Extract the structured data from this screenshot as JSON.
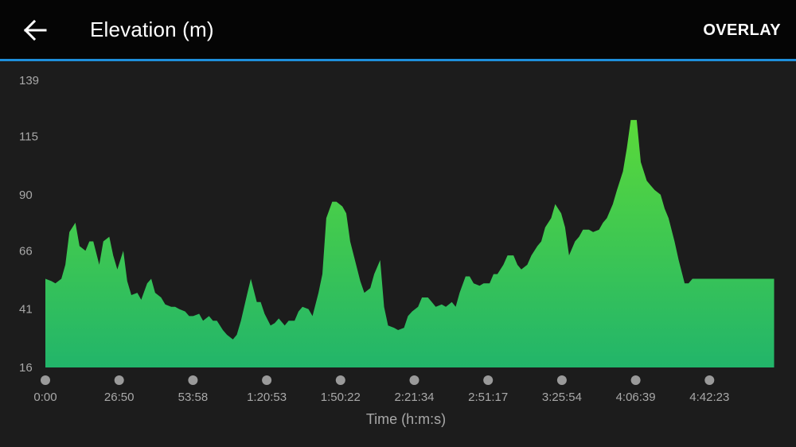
{
  "header": {
    "title": "Elevation (m)",
    "overlay_label": "OVERLAY",
    "back_icon": "arrow-left-icon"
  },
  "colors": {
    "header_bg": "#050505",
    "accent": "#1e8fdb",
    "background": "#1c1c1c",
    "fill_top": "#5ad93a",
    "fill_bottom": "#22b56a"
  },
  "chart_data": {
    "type": "area",
    "title": "Elevation (m)",
    "xlabel": "Time (h:m:s)",
    "ylabel": "",
    "ylim": [
      16,
      139
    ],
    "y_ticks": [
      "139",
      "115",
      "90",
      "66",
      "41",
      "16"
    ],
    "x_ticks": [
      "0:00",
      "26:50",
      "53:58",
      "1:20:53",
      "1:50:22",
      "2:21:34",
      "2:51:17",
      "3:25:54",
      "4:06:39",
      "4:42:23"
    ],
    "xlim_seconds": [
      0,
      19620
    ],
    "grid": false,
    "legend": "none",
    "series": [
      {
        "x_seconds": [
          0,
          160,
          270,
          430,
          535,
          645,
          805,
          915,
          1075,
          1180,
          1285,
          1445,
          1555,
          1715,
          1820,
          1930,
          2090,
          2195,
          2305,
          2465,
          2570,
          2730,
          2840,
          2945,
          3105,
          3215,
          3375,
          3480,
          3590,
          3750,
          3855,
          3965,
          4125,
          4230,
          4390,
          4495,
          4600,
          4760,
          4870,
          5030,
          5135,
          5245,
          5405,
          5510,
          5670,
          5775,
          5880,
          6040,
          6150,
          6260,
          6420,
          6525,
          6685,
          6790,
          6895,
          7055,
          7165,
          7325,
          7430,
          7535,
          7695,
          7805,
          7965,
          8070,
          8175,
          8335,
          8445,
          8555,
          8715,
          8820,
          8980,
          9085,
          9190,
          9350,
          9460,
          9620,
          9725,
          9835,
          9995,
          10100,
          10260,
          10365,
          10470,
          10630,
          10740,
          10900,
          11005,
          11110,
          11270,
          11380,
          11485,
          11645,
          11755,
          11915,
          12020,
          12125,
          12285,
          12395,
          12555,
          12660,
          12765,
          12925,
          13035,
          13195,
          13300,
          13405,
          13565,
          13675,
          13835,
          13940,
          14045,
          14205,
          14315,
          14420,
          14580,
          14690,
          14850,
          14955,
          15060,
          15220,
          15330,
          15490,
          15595,
          15700,
          15860,
          15970,
          16130,
          16235,
          16340,
          16500,
          16610,
          16715,
          16875,
          16985,
          17145,
          17250,
          17355,
          17515,
          17625,
          17785,
          17890,
          17995,
          18155,
          18265,
          18425,
          18530,
          18635,
          18795,
          18905,
          19060,
          19170,
          19275,
          19435,
          19545
        ],
        "values": [
          54,
          53,
          52,
          54,
          60,
          74,
          78,
          68,
          66,
          70,
          70,
          60,
          70,
          72,
          64,
          58,
          66,
          53,
          47,
          48,
          45,
          52,
          54,
          48,
          46,
          43,
          42,
          42,
          41,
          40,
          38,
          38,
          39,
          36,
          38,
          36,
          36,
          32,
          30,
          28,
          30,
          36,
          47,
          54,
          44,
          44,
          39,
          34,
          35,
          37,
          34,
          36,
          36,
          40,
          42,
          41,
          38,
          48,
          56,
          80,
          87,
          87,
          85,
          82,
          70,
          60,
          53,
          48,
          50,
          56,
          62,
          42,
          34,
          33,
          32,
          33,
          38,
          40,
          42,
          46,
          46,
          44,
          42,
          43,
          42,
          44,
          42,
          48,
          55,
          55,
          52,
          51,
          52,
          52,
          56,
          56,
          60,
          64,
          64,
          60,
          58,
          60,
          64,
          68,
          70,
          76,
          80,
          86,
          82,
          76,
          64,
          70,
          72,
          75,
          75,
          74,
          75,
          78,
          80,
          86,
          92,
          100,
          110,
          122,
          122,
          104,
          96,
          94,
          92,
          90,
          84,
          80,
          70,
          62,
          52,
          52,
          54,
          54,
          54,
          54,
          54,
          54,
          54,
          54,
          54,
          54,
          54,
          54,
          54,
          54,
          54,
          54,
          54,
          54
        ]
      }
    ]
  }
}
